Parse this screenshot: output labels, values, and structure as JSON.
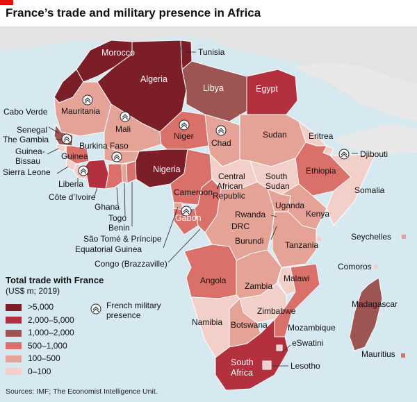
{
  "title": "France’s trade and military presence in Africa",
  "legend": {
    "title": "Total trade with France",
    "unit": "(US$ m; 2019)",
    "classes": [
      {
        "label": ">5,000",
        "color": "#7b1e28"
      },
      {
        "label": "2,000–5,000",
        "color": "#b3303f"
      },
      {
        "label": "1,000–2,000",
        "color": "#9c5552"
      },
      {
        "label": "500–1,000",
        "color": "#d9716a"
      },
      {
        "label": "100–500",
        "color": "#e5a297"
      },
      {
        "label": "0–100",
        "color": "#f2cfc9"
      }
    ],
    "military_label": "French military presence"
  },
  "source": "Sources: IMF; The Economist Intelligence Unit.",
  "countries": {
    "morocco": "Morocco",
    "tunisia": "Tunisia",
    "algeria": "Algeria",
    "libya": "Libya",
    "egypt": "Egypt",
    "cabo_verde": "Cabo Verde",
    "mauritania": "Mauritania",
    "mali": "Mali",
    "senegal": "Senegal",
    "the_gambia": "The Gambia",
    "guinea_bissau": "Guinea-Bissau",
    "guinea": "Guinea",
    "sierra_leone": "Sierra Leone",
    "liberia": "Liberia",
    "cote_divoire": "Côte d’Ivoire",
    "burkina_faso": "Burkina Faso",
    "ghana": "Ghana",
    "togo": "Togo",
    "benin": "Benin",
    "niger": "Niger",
    "nigeria": "Nigeria",
    "chad": "Chad",
    "sudan": "Sudan",
    "eritrea": "Eritrea",
    "djibouti": "Djibouti",
    "ethiopia": "Ethiopia",
    "somalia": "Somalia",
    "car": "Central African Republic",
    "south_sudan": "South Sudan",
    "cameroon": "Cameroon",
    "gabon": "Gabon",
    "sao_tome": "São Tomé & Príncipe",
    "equatorial_guinea": "Equatorial Guinea",
    "congo": "Congo (Brazzaville)",
    "drc": "DRC",
    "uganda": "Uganda",
    "kenya": "Kenya",
    "rwanda": "Rwanda",
    "burundi": "Burundi",
    "tanzania": "Tanzania",
    "seychelles": "Seychelles",
    "comoros": "Comoros",
    "angola": "Angola",
    "zambia": "Zambia",
    "malawi": "Malawi",
    "madagascar": "Madagascar",
    "zimbabwe": "Zimbabwe",
    "mozambique": "Mozambique",
    "namibia": "Namibia",
    "botswana": "Botswana",
    "eswatini": "eSwatini",
    "mauritius": "Mauritius",
    "south_africa": "South Africa",
    "lesotho": "Lesotho"
  },
  "trade_class": {
    "morocco": ">5,000",
    "tunisia": ">5,000",
    "algeria": ">5,000",
    "nigeria": ">5,000",
    "egypt": "2,000–5,000",
    "cote_divoire": "2,000–5,000",
    "south_africa": "2,000–5,000",
    "libya": "1,000–2,000",
    "senegal": "1,000–2,000",
    "madagascar": "1,000–2,000",
    "mauritania": "500–1,000",
    "guinea": "500–1,000",
    "niger": "500–1,000",
    "cameroon": "500–1,000",
    "ethiopia": "500–1,000",
    "angola": "500–1,000",
    "congo": "500–1,000",
    "gabon": "500–1,000",
    "benin": "500–1,000",
    "ghana": "500–1,000",
    "mozambique": "500–1,000"
  },
  "military_presence": [
    "Mauritania",
    "Mali",
    "Niger",
    "Chad",
    "Senegal",
    "Côte d’Ivoire",
    "Gabon",
    "Djibouti",
    "Burkina Faso"
  ]
}
